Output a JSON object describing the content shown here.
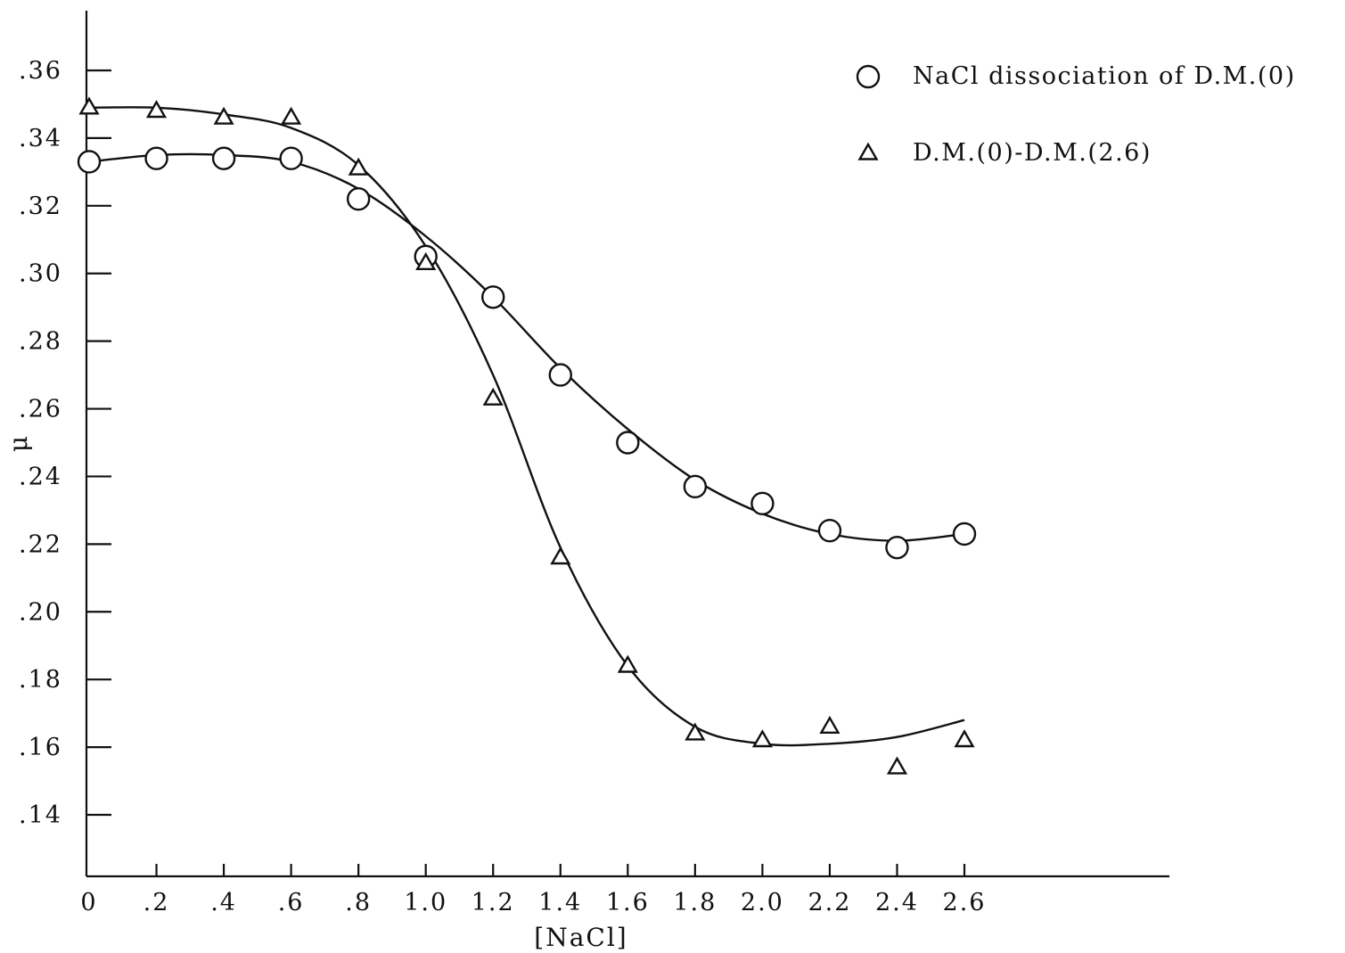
{
  "chart_data": {
    "type": "scatter",
    "title": "",
    "xlabel": "[NaCl]",
    "ylabel": "μ",
    "xlim": [
      0,
      2.6
    ],
    "ylim": [
      0.125,
      0.37
    ],
    "grid": false,
    "legend_position": "top-right",
    "x_ticks": [
      {
        "value": 0,
        "label": "0"
      },
      {
        "value": 0.2,
        "label": ".2"
      },
      {
        "value": 0.4,
        "label": ".4"
      },
      {
        "value": 0.6,
        "label": ".6"
      },
      {
        "value": 0.8,
        "label": ".8"
      },
      {
        "value": 1.0,
        "label": "1.0"
      },
      {
        "value": 1.2,
        "label": "1.2"
      },
      {
        "value": 1.4,
        "label": "1.4"
      },
      {
        "value": 1.6,
        "label": "1.6"
      },
      {
        "value": 1.8,
        "label": "1.8"
      },
      {
        "value": 2.0,
        "label": "2.0"
      },
      {
        "value": 2.2,
        "label": "2.2"
      },
      {
        "value": 2.4,
        "label": "2.4"
      },
      {
        "value": 2.6,
        "label": "2.6"
      }
    ],
    "y_ticks": [
      {
        "value": 0.14,
        "label": ".14"
      },
      {
        "value": 0.16,
        "label": ".16"
      },
      {
        "value": 0.18,
        "label": ".18"
      },
      {
        "value": 0.2,
        "label": ".20"
      },
      {
        "value": 0.22,
        "label": ".22"
      },
      {
        "value": 0.24,
        "label": ".24"
      },
      {
        "value": 0.26,
        "label": ".26"
      },
      {
        "value": 0.28,
        "label": ".28"
      },
      {
        "value": 0.3,
        "label": ".30"
      },
      {
        "value": 0.32,
        "label": ".32"
      },
      {
        "value": 0.34,
        "label": ".34"
      },
      {
        "value": 0.36,
        "label": ".36"
      }
    ],
    "series": [
      {
        "name": "NaCl dissociation of D.M.(0)",
        "marker": "circle",
        "points": [
          {
            "x": 0.0,
            "y": 0.333
          },
          {
            "x": 0.2,
            "y": 0.334
          },
          {
            "x": 0.4,
            "y": 0.334
          },
          {
            "x": 0.6,
            "y": 0.334
          },
          {
            "x": 0.8,
            "y": 0.322
          },
          {
            "x": 1.0,
            "y": 0.305
          },
          {
            "x": 1.2,
            "y": 0.293
          },
          {
            "x": 1.4,
            "y": 0.27
          },
          {
            "x": 1.6,
            "y": 0.25
          },
          {
            "x": 1.8,
            "y": 0.237
          },
          {
            "x": 2.0,
            "y": 0.232
          },
          {
            "x": 2.2,
            "y": 0.224
          },
          {
            "x": 2.4,
            "y": 0.219
          },
          {
            "x": 2.6,
            "y": 0.223
          }
        ],
        "curve": [
          {
            "x": 0.0,
            "y": 0.333
          },
          {
            "x": 0.2,
            "y": 0.335
          },
          {
            "x": 0.4,
            "y": 0.335
          },
          {
            "x": 0.6,
            "y": 0.333
          },
          {
            "x": 0.8,
            "y": 0.325
          },
          {
            "x": 1.0,
            "y": 0.311
          },
          {
            "x": 1.2,
            "y": 0.293
          },
          {
            "x": 1.4,
            "y": 0.272
          },
          {
            "x": 1.6,
            "y": 0.254
          },
          {
            "x": 1.8,
            "y": 0.239
          },
          {
            "x": 2.0,
            "y": 0.229
          },
          {
            "x": 2.2,
            "y": 0.223
          },
          {
            "x": 2.4,
            "y": 0.221
          },
          {
            "x": 2.6,
            "y": 0.223
          }
        ]
      },
      {
        "name": "D.M.(0)-D.M.(2.6)",
        "marker": "triangle",
        "points": [
          {
            "x": 0.0,
            "y": 0.349
          },
          {
            "x": 0.2,
            "y": 0.348
          },
          {
            "x": 0.4,
            "y": 0.346
          },
          {
            "x": 0.6,
            "y": 0.346
          },
          {
            "x": 0.8,
            "y": 0.331
          },
          {
            "x": 1.0,
            "y": 0.303
          },
          {
            "x": 1.2,
            "y": 0.263
          },
          {
            "x": 1.4,
            "y": 0.216
          },
          {
            "x": 1.6,
            "y": 0.184
          },
          {
            "x": 1.8,
            "y": 0.164
          },
          {
            "x": 2.0,
            "y": 0.162
          },
          {
            "x": 2.2,
            "y": 0.166
          },
          {
            "x": 2.4,
            "y": 0.154
          },
          {
            "x": 2.6,
            "y": 0.162
          }
        ],
        "curve": [
          {
            "x": 0.0,
            "y": 0.349
          },
          {
            "x": 0.2,
            "y": 0.349
          },
          {
            "x": 0.4,
            "y": 0.347
          },
          {
            "x": 0.6,
            "y": 0.343
          },
          {
            "x": 0.8,
            "y": 0.332
          },
          {
            "x": 1.0,
            "y": 0.308
          },
          {
            "x": 1.2,
            "y": 0.27
          },
          {
            "x": 1.4,
            "y": 0.219
          },
          {
            "x": 1.6,
            "y": 0.184
          },
          {
            "x": 1.8,
            "y": 0.166
          },
          {
            "x": 2.0,
            "y": 0.161
          },
          {
            "x": 2.2,
            "y": 0.161
          },
          {
            "x": 2.4,
            "y": 0.163
          },
          {
            "x": 2.6,
            "y": 0.168
          }
        ]
      }
    ]
  }
}
